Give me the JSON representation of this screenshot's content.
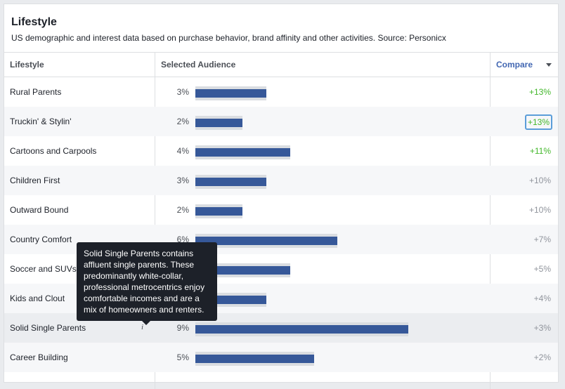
{
  "title": "Lifestyle",
  "subtitle": "US demographic and interest data based on purchase behavior, brand affinity and other activities. Source: Personicx",
  "columns": {
    "lifestyle": "Lifestyle",
    "audience": "Selected Audience",
    "compare": "Compare"
  },
  "rows": [
    {
      "name": "Rural Parents",
      "pct": "3%",
      "value": 3,
      "compare": "+13%"
    },
    {
      "name": "Truckin' & Stylin'",
      "pct": "2%",
      "value": 2,
      "compare": "+13%"
    },
    {
      "name": "Cartoons and Carpools",
      "pct": "4%",
      "value": 4,
      "compare": "+11%"
    },
    {
      "name": "Children First",
      "pct": "3%",
      "value": 3,
      "compare": "+10%"
    },
    {
      "name": "Outward Bound",
      "pct": "2%",
      "value": 2,
      "compare": "+10%"
    },
    {
      "name": "Country Comfort",
      "pct": "6%",
      "value": 6,
      "compare": "+7%"
    },
    {
      "name": "Soccer and SUVs",
      "pct": "4%",
      "value": 4,
      "compare": "+5%"
    },
    {
      "name": "Kids and Clout",
      "pct": "3%",
      "value": 3,
      "compare": "+4%"
    },
    {
      "name": "Solid Single Parents",
      "pct": "9%",
      "value": 9,
      "compare": "+3%",
      "info": "i"
    },
    {
      "name": "Career Building",
      "pct": "5%",
      "value": 5,
      "compare": "+2%"
    }
  ],
  "tooltip": "Solid Single Parents contains affluent single parents. These predominantly white-collar, professional metrocentrics enjoy comfortable incomes and are a mix of homeowners and renters.",
  "colors": {
    "bar": "#365899",
    "track": "#dadde1",
    "positive": "#42b72a",
    "link": "#4267b2"
  },
  "icons": {
    "sort": "chevron-down-icon",
    "info": "info-icon"
  }
}
